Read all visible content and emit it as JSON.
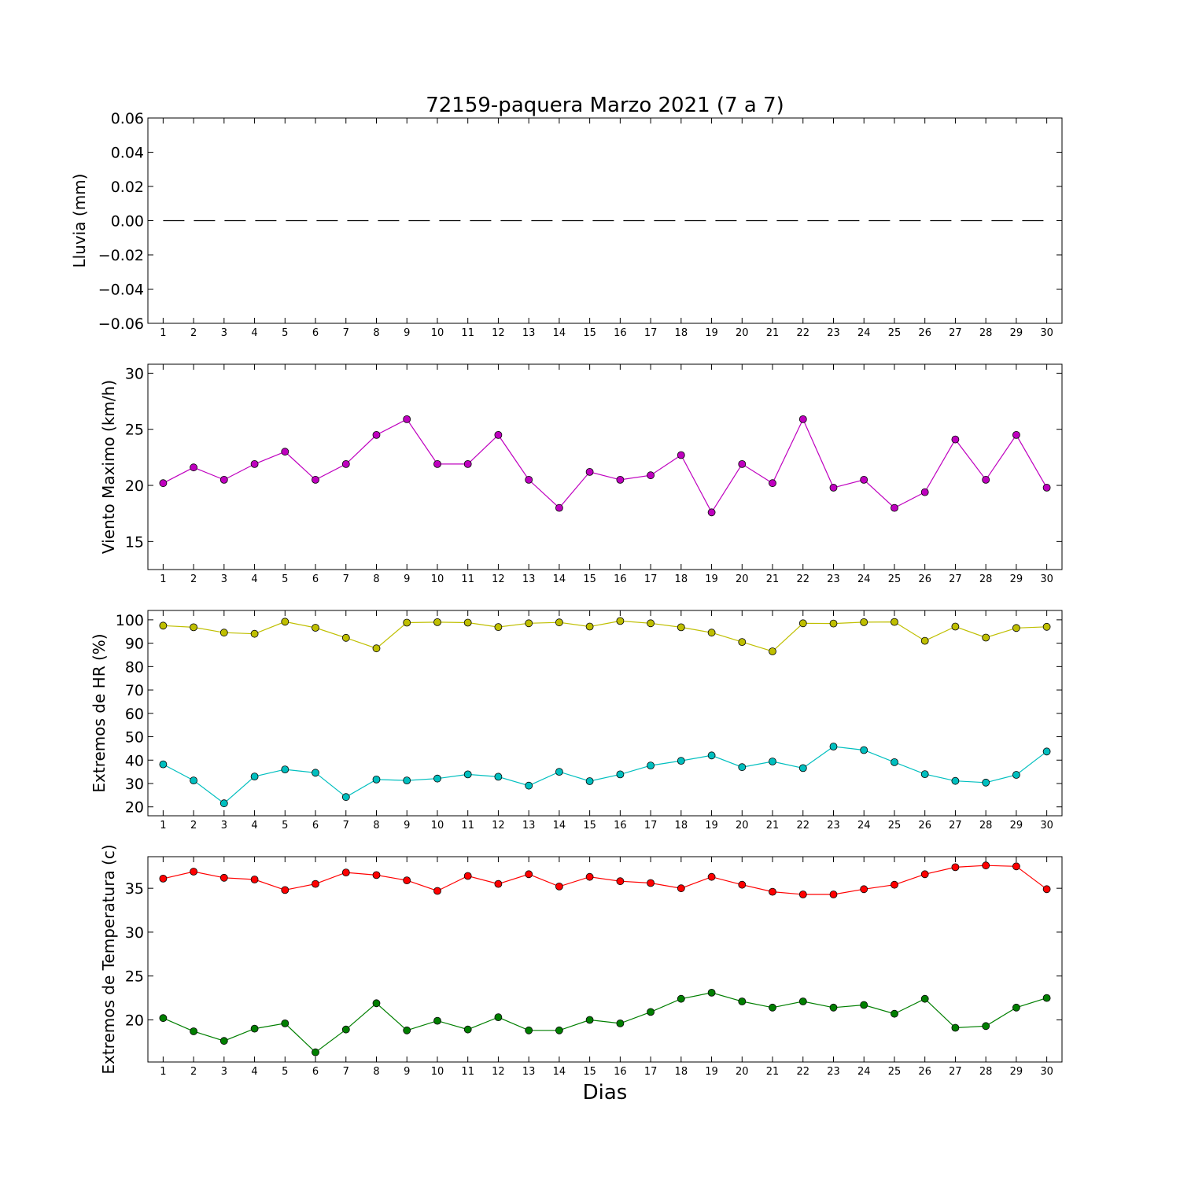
{
  "title": "72159-paquera Marzo 2021  (7 a 7)",
  "xlabel": "Dias",
  "chart_data": [
    {
      "type": "line",
      "ylabel": "Lluvia (mm)",
      "ylim": [
        -0.06,
        0.06
      ],
      "yticks": [
        0.06,
        0.04,
        0.02,
        0.0,
        -0.02,
        -0.04,
        -0.06
      ],
      "ytick_labels": [
        "0.06",
        "0.04",
        "0.02",
        "0.00",
        "−0.02",
        "−0.04",
        "−0.06"
      ],
      "x": [
        1,
        2,
        3,
        4,
        5,
        6,
        7,
        8,
        9,
        10,
        11,
        12,
        13,
        14,
        15,
        16,
        17,
        18,
        19,
        20,
        21,
        22,
        23,
        24,
        25,
        26,
        27,
        28,
        29,
        30
      ],
      "series": [
        {
          "style": "dashed",
          "color": "#000000",
          "markers": false,
          "values": [
            0,
            0,
            0,
            0,
            0,
            0,
            0,
            0,
            0,
            0,
            0,
            0,
            0,
            0,
            0,
            0,
            0,
            0,
            0,
            0,
            0,
            0,
            0,
            0,
            0,
            0,
            0,
            0,
            0,
            0
          ]
        }
      ]
    },
    {
      "type": "line",
      "ylabel": "Viento Maximo (km/h)",
      "ylim": [
        12.5,
        30.8
      ],
      "yticks": [
        30,
        25,
        20,
        15
      ],
      "ytick_labels": [
        "30",
        "25",
        "20",
        "15"
      ],
      "x": [
        1,
        2,
        3,
        4,
        5,
        6,
        7,
        8,
        9,
        10,
        11,
        12,
        13,
        14,
        15,
        16,
        17,
        18,
        19,
        20,
        21,
        22,
        23,
        24,
        25,
        26,
        27,
        28,
        29,
        30
      ],
      "series": [
        {
          "color": "#bf00bf",
          "markers": true,
          "values": [
            20.2,
            21.6,
            20.5,
            21.9,
            23.0,
            20.5,
            21.9,
            24.5,
            25.9,
            21.9,
            21.9,
            24.5,
            20.5,
            18.0,
            21.2,
            20.5,
            20.9,
            22.7,
            17.6,
            21.9,
            20.2,
            25.9,
            19.8,
            20.5,
            18.0,
            19.4,
            24.1,
            20.5,
            24.5,
            19.8
          ]
        }
      ]
    },
    {
      "type": "line",
      "ylabel": "Extremos de HR (%)",
      "ylim": [
        16.2,
        104
      ],
      "yticks": [
        100,
        90,
        80,
        70,
        60,
        50,
        40,
        30,
        20
      ],
      "ytick_labels": [
        "100",
        "90",
        "80",
        "70",
        "60",
        "50",
        "40",
        "30",
        "20"
      ],
      "x": [
        1,
        2,
        3,
        4,
        5,
        6,
        7,
        8,
        9,
        10,
        11,
        12,
        13,
        14,
        15,
        16,
        17,
        18,
        19,
        20,
        21,
        22,
        23,
        24,
        25,
        26,
        27,
        28,
        29,
        30
      ],
      "series": [
        {
          "color": "#bfbf00",
          "markers": true,
          "values": [
            97.5,
            96.8,
            94.5,
            94.0,
            99.2,
            96.6,
            92.3,
            87.8,
            98.8,
            99.0,
            98.8,
            96.9,
            98.5,
            98.9,
            97.1,
            99.5,
            98.5,
            96.8,
            94.5,
            90.5,
            86.5,
            98.5,
            98.4,
            99.0,
            99.1,
            91.0,
            97.1,
            92.4,
            96.5,
            97.0
          ]
        },
        {
          "color": "#00bfbf",
          "markers": true,
          "values": [
            38.2,
            31.3,
            21.5,
            33.0,
            36.0,
            34.6,
            24.2,
            31.7,
            31.3,
            32.1,
            33.9,
            32.9,
            29.1,
            35.0,
            31.0,
            33.9,
            37.7,
            39.7,
            42.0,
            37.0,
            39.4,
            36.6,
            45.8,
            44.3,
            39.1,
            34.0,
            31.1,
            30.4,
            33.7,
            43.7
          ]
        }
      ]
    },
    {
      "type": "line",
      "ylabel": "Extremos de Temperatura (c)",
      "ylim": [
        15.2,
        38.6
      ],
      "yticks": [
        35,
        30,
        25,
        20
      ],
      "ytick_labels": [
        "35",
        "30",
        "25",
        "20"
      ],
      "x": [
        1,
        2,
        3,
        4,
        5,
        6,
        7,
        8,
        9,
        10,
        11,
        12,
        13,
        14,
        15,
        16,
        17,
        18,
        19,
        20,
        21,
        22,
        23,
        24,
        25,
        26,
        27,
        28,
        29,
        30
      ],
      "series": [
        {
          "color": "#ff0000",
          "markers": true,
          "values": [
            36.1,
            36.9,
            36.2,
            36.0,
            34.8,
            35.5,
            36.8,
            36.5,
            35.9,
            34.7,
            36.4,
            35.5,
            36.6,
            35.2,
            36.3,
            35.8,
            35.6,
            35.0,
            36.3,
            35.4,
            34.6,
            34.3,
            34.3,
            34.9,
            35.4,
            36.6,
            37.4,
            37.6,
            37.5,
            34.9
          ]
        },
        {
          "color": "#007f00",
          "markers": true,
          "values": [
            20.2,
            18.7,
            17.6,
            19.0,
            19.6,
            16.3,
            18.9,
            21.9,
            18.8,
            19.9,
            18.9,
            20.3,
            18.8,
            18.8,
            20.0,
            19.6,
            20.9,
            22.4,
            23.1,
            22.1,
            21.4,
            22.1,
            21.4,
            21.7,
            20.7,
            22.4,
            19.1,
            19.3,
            21.4,
            22.5
          ]
        }
      ]
    }
  ]
}
